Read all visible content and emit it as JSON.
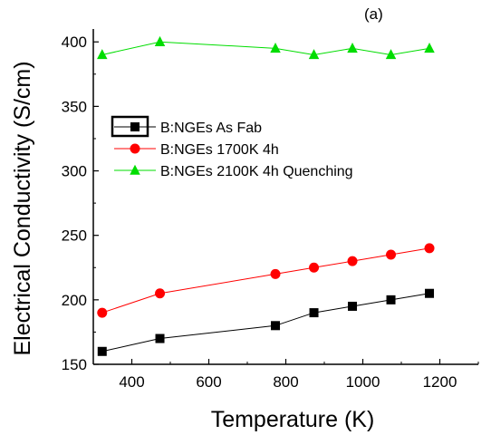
{
  "chart_data": {
    "type": "line",
    "panel_label": "(a)",
    "xlabel": "Temperature (K)",
    "ylabel": "Electrical Conductivity (S/cm)",
    "xlim": [
      300,
      1300
    ],
    "ylim": [
      150,
      410
    ],
    "x_ticks": [
      400,
      600,
      800,
      1000,
      1200
    ],
    "y_ticks": [
      150,
      200,
      250,
      300,
      350,
      400
    ],
    "legend_position": "upper-left",
    "series": [
      {
        "name": "B:NGEs As Fab",
        "color": "#000000",
        "marker": "square",
        "x": [
          323,
          473,
          773,
          873,
          973,
          1073,
          1173
        ],
        "y": [
          160,
          170,
          180,
          190,
          195,
          200,
          205
        ]
      },
      {
        "name": "B:NGEs 1700K 4h",
        "color": "#ff0000",
        "marker": "circle",
        "x": [
          323,
          473,
          773,
          873,
          973,
          1073,
          1173
        ],
        "y": [
          190,
          205,
          220,
          225,
          230,
          235,
          240
        ]
      },
      {
        "name": "B:NGEs 2100K 4h Quenching",
        "color": "#00dd00",
        "marker": "triangle",
        "x": [
          323,
          473,
          773,
          873,
          973,
          1073,
          1173
        ],
        "y": [
          390,
          400,
          395,
          390,
          395,
          390,
          395
        ]
      }
    ]
  }
}
